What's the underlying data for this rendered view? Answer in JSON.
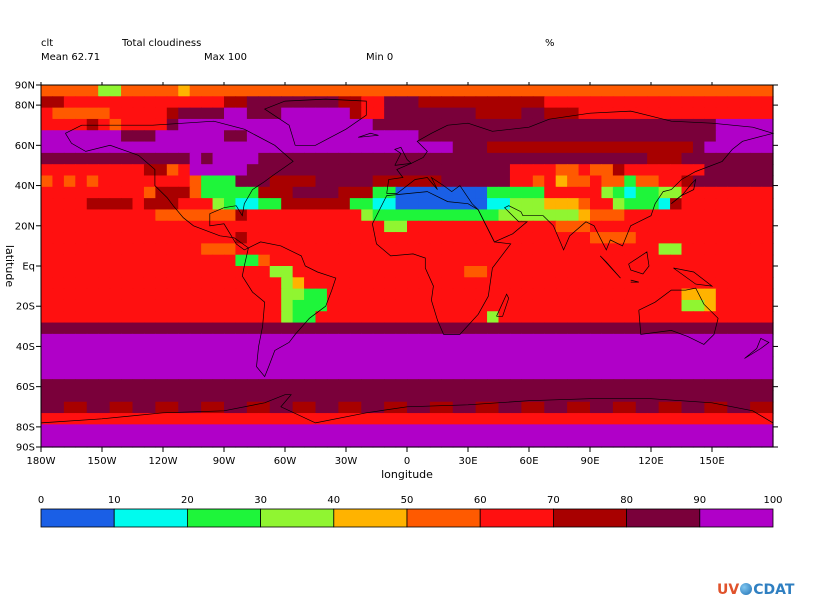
{
  "header": {
    "variable": "clt",
    "long_name": "Total cloudiness",
    "units": "%",
    "mean_label": "Mean 62.71",
    "max_label": "Max 100",
    "min_label": "Min 0"
  },
  "logo": {
    "part1": "UV",
    "part2": "CDAT",
    "icon": "globe-icon"
  },
  "chart_data": {
    "type": "heatmap",
    "title": "Total cloudiness",
    "xlabel": "longitude",
    "ylabel": "latitude",
    "xlim": [
      -180,
      180
    ],
    "ylim": [
      -90,
      90
    ],
    "x_ticks": [
      {
        "value": -180,
        "label": "180W"
      },
      {
        "value": -150,
        "label": "150W"
      },
      {
        "value": -120,
        "label": "120W"
      },
      {
        "value": -90,
        "label": "90W"
      },
      {
        "value": -60,
        "label": "60W"
      },
      {
        "value": -30,
        "label": "30W"
      },
      {
        "value": 0,
        "label": "0"
      },
      {
        "value": 30,
        "label": "30E"
      },
      {
        "value": 60,
        "label": "60E"
      },
      {
        "value": 90,
        "label": "90E"
      },
      {
        "value": 120,
        "label": "120E"
      },
      {
        "value": 150,
        "label": "150E"
      }
    ],
    "y_ticks": [
      {
        "value": 90,
        "label": "90N"
      },
      {
        "value": 80,
        "label": "80N"
      },
      {
        "value": 60,
        "label": "60N"
      },
      {
        "value": 40,
        "label": "40N"
      },
      {
        "value": 20,
        "label": "20N"
      },
      {
        "value": 0,
        "label": "Eq"
      },
      {
        "value": -20,
        "label": "20S"
      },
      {
        "value": -40,
        "label": "40S"
      },
      {
        "value": -60,
        "label": "60S"
      },
      {
        "value": -80,
        "label": "80S"
      },
      {
        "value": -90,
        "label": "90S"
      }
    ],
    "colorbar": {
      "levels": [
        0,
        10,
        20,
        30,
        40,
        50,
        60,
        70,
        80,
        90,
        100
      ],
      "colors": [
        "#1a5fe6",
        "#00fbee",
        "#1ef53a",
        "#90f531",
        "#ffb300",
        "#ff5a00",
        "#ff1010",
        "#a80000",
        "#7a003a",
        "#b000c8"
      ]
    },
    "mean": 62.71,
    "max": 100,
    "min": 0,
    "grid": {
      "nlon": 64,
      "nlat": 32,
      "rows_north_to_south": [
        "5555533555554555555555555555555555555555555555555555555555555555",
        "7766666666666666778888888877668887777777777766666666666666666666",
        "6555556666678888998889999997668888888877778877766666666666666666",
        "6666765666689999999999999999988888888888888888888888888888899999",
        "9999999888999999889999999999999998888888888888888888888888899999",
        "9999999999999999999999999999999999998887777777777777777778999999",
        "8888888888888989999888888888888888888888888888888888877788888888",
        "6666666667756999998888888888888888888888866665565576666666888888",
        "5656566666666522288877778888877777788888866564556552556678888888",
        "6666666665777522222777888877722000000002222266666321223366666666",
        "6666777767776663211227777772211000000001133344456632221766666666",
        "6666666666555555576666666666322222222222333333345556666666666666",
        "6666666666666666666666666666663366666666666665556666666666666666",
        "6666666666666666676666666666666666666666666666665555666666666666",
        "6666666666666655566666666666666666666666666666666666663366666666",
        "6666666666666666622566666666666666666666666666666666666666666666",
        "6666666666666666666633666666666666666556666666666666666666666666",
        "6666666666666666666663466666666666666666666666666666666666666666",
        "6666666666666666666663322666666666666666666666666666666644466666",
        "6666666666666666666663222666666666666666666666666666666633466666",
        "6666666666666666666663226666666666666663666666666666666666666666",
        "8888888888888888888888888888888888888888888888888888888888888888",
        "9999999999999999999999999999999999999999999999999999999999999999",
        "9999999999999999999999999999999999999999999999999999999999999999",
        "9999999999999999999999999999999999999999999999999999999999999999",
        "9999999999999999999999999999999999999999999999999999999999999999",
        "8888888888888888888888888888888888888888888888888888888888888888",
        "8888888888888888888888888888888888888888888888888888888888888888",
        "8877887788778877887788778877887788778877887788778877887788778877",
        "6666666666666666666666666666666666666666666666666666666666666666",
        "9999999999999999999999999999999999999999999999999999999999999999",
        "9999999999999999999999999999999999999999999999999999999999999999"
      ]
    }
  }
}
